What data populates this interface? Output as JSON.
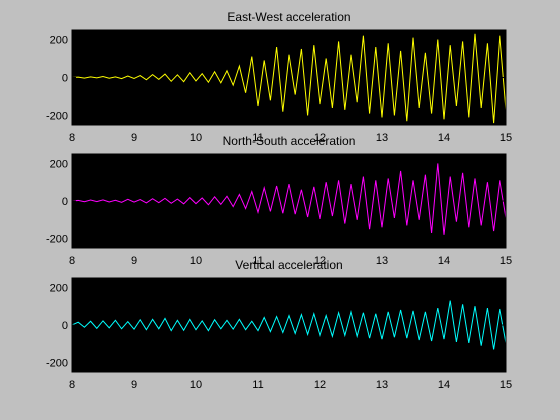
{
  "figure": {
    "background": "#c0c0c0",
    "axes_background": "#000000",
    "axis_color": "#000000"
  },
  "chart_data": [
    {
      "type": "line",
      "title": "East-West acceleration",
      "xlabel": "",
      "ylabel": "",
      "xlim": [
        8,
        15
      ],
      "ylim": [
        -250,
        250
      ],
      "xticks": [
        8,
        9,
        10,
        11,
        12,
        13,
        14,
        15
      ],
      "yticks": [
        -200,
        0,
        200
      ],
      "xtick_labels": [
        "8",
        "9",
        "10",
        "11",
        "12",
        "13",
        "14",
        "15"
      ],
      "ytick_labels": [
        "-200",
        "0",
        "200"
      ],
      "grid": false,
      "series": [
        {
          "color": "#ffff00",
          "x": [
            8.0,
            8.1,
            8.2,
            8.3,
            8.4,
            8.5,
            8.6,
            8.7,
            8.8,
            8.9,
            9.0,
            9.1,
            9.2,
            9.3,
            9.4,
            9.5,
            9.6,
            9.7,
            9.8,
            9.9,
            10.0,
            10.1,
            10.2,
            10.3,
            10.4,
            10.5,
            10.6,
            10.7,
            10.8,
            10.9,
            11.0,
            11.1,
            11.2,
            11.3,
            11.4,
            11.5,
            11.6,
            11.7,
            11.8,
            11.9,
            12.0,
            12.1,
            12.2,
            12.3,
            12.4,
            12.5,
            12.6,
            12.7,
            12.8,
            12.9,
            13.0,
            13.1,
            13.2,
            13.3,
            13.4,
            13.5,
            13.6,
            13.7,
            13.8,
            13.9,
            14.0,
            14.1,
            14.2,
            14.3,
            14.4,
            14.5,
            14.6,
            14.7,
            14.8,
            14.9,
            15.0
          ],
          "y": [
            0,
            2,
            -3,
            3,
            -2,
            5,
            -4,
            3,
            -6,
            8,
            -5,
            10,
            -12,
            15,
            -10,
            18,
            -20,
            14,
            -22,
            25,
            -18,
            20,
            -25,
            30,
            -28,
            35,
            -40,
            60,
            -80,
            110,
            -150,
            90,
            -120,
            160,
            -180,
            120,
            -90,
            150,
            -200,
            170,
            -140,
            100,
            -160,
            190,
            -170,
            120,
            -130,
            220,
            -190,
            160,
            -210,
            180,
            -200,
            140,
            -230,
            210,
            -160,
            130,
            -190,
            200,
            -220,
            170,
            -150,
            190,
            -210,
            230,
            -160,
            180,
            -240,
            220,
            -170
          ]
        }
      ]
    },
    {
      "type": "line",
      "title": "North-South acceleration",
      "xlabel": "",
      "ylabel": "",
      "xlim": [
        8,
        15
      ],
      "ylim": [
        -250,
        250
      ],
      "xticks": [
        8,
        9,
        10,
        11,
        12,
        13,
        14,
        15
      ],
      "yticks": [
        -200,
        0,
        200
      ],
      "xtick_labels": [
        "8",
        "9",
        "10",
        "11",
        "12",
        "13",
        "14",
        "15"
      ],
      "ytick_labels": [
        "-200",
        "0",
        "200"
      ],
      "grid": false,
      "series": [
        {
          "color": "#ff00ff",
          "x": [
            8.0,
            8.1,
            8.2,
            8.3,
            8.4,
            8.5,
            8.6,
            8.7,
            8.8,
            8.9,
            9.0,
            9.1,
            9.2,
            9.3,
            9.4,
            9.5,
            9.6,
            9.7,
            9.8,
            9.9,
            10.0,
            10.1,
            10.2,
            10.3,
            10.4,
            10.5,
            10.6,
            10.7,
            10.8,
            10.9,
            11.0,
            11.1,
            11.2,
            11.3,
            11.4,
            11.5,
            11.6,
            11.7,
            11.8,
            11.9,
            12.0,
            12.1,
            12.2,
            12.3,
            12.4,
            12.5,
            12.6,
            12.7,
            12.8,
            12.9,
            13.0,
            13.1,
            13.2,
            13.3,
            13.4,
            13.5,
            13.6,
            13.7,
            13.8,
            13.9,
            14.0,
            14.1,
            14.2,
            14.3,
            14.4,
            14.5,
            14.6,
            14.7,
            14.8,
            14.9,
            15.0
          ],
          "y": [
            0,
            3,
            -4,
            5,
            -3,
            6,
            -5,
            4,
            -7,
            9,
            -6,
            8,
            -10,
            12,
            -9,
            14,
            -12,
            10,
            -15,
            18,
            -14,
            16,
            -20,
            22,
            -18,
            25,
            -30,
            35,
            -40,
            50,
            -60,
            70,
            -55,
            80,
            -65,
            90,
            -70,
            60,
            -85,
            75,
            -95,
            100,
            -80,
            110,
            -120,
            90,
            -100,
            130,
            -150,
            110,
            -140,
            120,
            -90,
            160,
            -130,
            110,
            -100,
            140,
            -170,
            200,
            -180,
            130,
            -110,
            150,
            -140,
            120,
            -130,
            100,
            -160,
            110,
            -90
          ]
        }
      ]
    },
    {
      "type": "line",
      "title": "Vertical acceleration",
      "xlabel": "",
      "ylabel": "",
      "xlim": [
        8,
        15
      ],
      "ylim": [
        -250,
        250
      ],
      "xticks": [
        8,
        9,
        10,
        11,
        12,
        13,
        14,
        15
      ],
      "yticks": [
        -200,
        0,
        200
      ],
      "xtick_labels": [
        "8",
        "9",
        "10",
        "11",
        "12",
        "13",
        "14",
        "15"
      ],
      "ytick_labels": [
        "-200",
        "0",
        "200"
      ],
      "grid": false,
      "series": [
        {
          "color": "#00ffff",
          "x": [
            8.0,
            8.1,
            8.2,
            8.3,
            8.4,
            8.5,
            8.6,
            8.7,
            8.8,
            8.9,
            9.0,
            9.1,
            9.2,
            9.3,
            9.4,
            9.5,
            9.6,
            9.7,
            9.8,
            9.9,
            10.0,
            10.1,
            10.2,
            10.3,
            10.4,
            10.5,
            10.6,
            10.7,
            10.8,
            10.9,
            11.0,
            11.1,
            11.2,
            11.3,
            11.4,
            11.5,
            11.6,
            11.7,
            11.8,
            11.9,
            12.0,
            12.1,
            12.2,
            12.3,
            12.4,
            12.5,
            12.6,
            12.7,
            12.8,
            12.9,
            13.0,
            13.1,
            13.2,
            13.3,
            13.4,
            13.5,
            13.6,
            13.7,
            13.8,
            13.9,
            14.0,
            14.1,
            14.2,
            14.3,
            14.4,
            14.5,
            14.6,
            14.7,
            14.8,
            14.9,
            15.0
          ],
          "y": [
            0,
            15,
            -12,
            20,
            -18,
            22,
            -15,
            25,
            -20,
            18,
            -22,
            28,
            -25,
            30,
            -20,
            35,
            -30,
            25,
            -28,
            30,
            -25,
            22,
            -30,
            28,
            -20,
            25,
            -22,
            30,
            -25,
            20,
            -30,
            40,
            -35,
            45,
            -40,
            50,
            -45,
            55,
            -50,
            60,
            -55,
            50,
            -60,
            65,
            -55,
            70,
            -60,
            65,
            -70,
            60,
            -75,
            70,
            -65,
            80,
            -70,
            75,
            -80,
            70,
            -85,
            90,
            -75,
            130,
            -90,
            110,
            -95,
            100,
            -110,
            90,
            -130,
            85,
            -95
          ]
        }
      ]
    }
  ]
}
